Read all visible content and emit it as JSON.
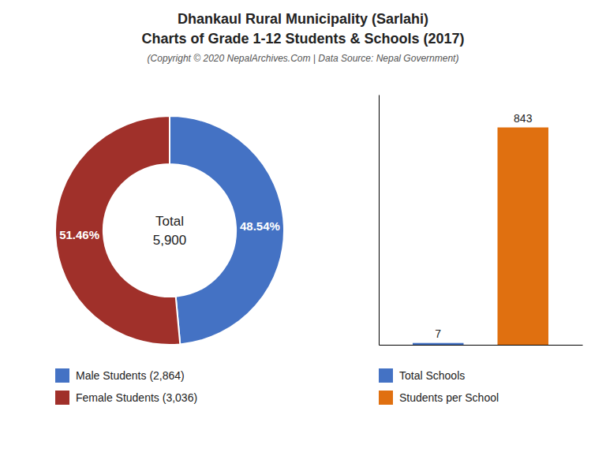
{
  "chart_data": [
    {
      "type": "pie",
      "title": [
        "Dhankaul Rural Municipality (Sarlahi)",
        "Charts of Grade 1-12 Students & Schools (2017)"
      ],
      "subtitle": "(Copyright © 2020 NepalArchives.Com | Data Source: Nepal Government)",
      "categories": [
        "Male Students (2,864)",
        "Female Students (3,036)"
      ],
      "values": [
        48.54,
        51.46
      ],
      "value_labels": [
        "48.54%",
        "51.46%"
      ],
      "colors": [
        "#4472c4",
        "#a0302a"
      ],
      "annotations": [
        "Total",
        "5,900"
      ],
      "data_labels": true,
      "legend": "lower left"
    },
    {
      "type": "bar",
      "categories": [
        "Total Schools",
        "Students per School"
      ],
      "values": [
        7,
        843
      ],
      "colors": [
        "#4472c4",
        "#e07010"
      ],
      "ylim": [
        0,
        970
      ],
      "tick_labels": false,
      "data_labels": true,
      "legend": "lower left"
    }
  ]
}
